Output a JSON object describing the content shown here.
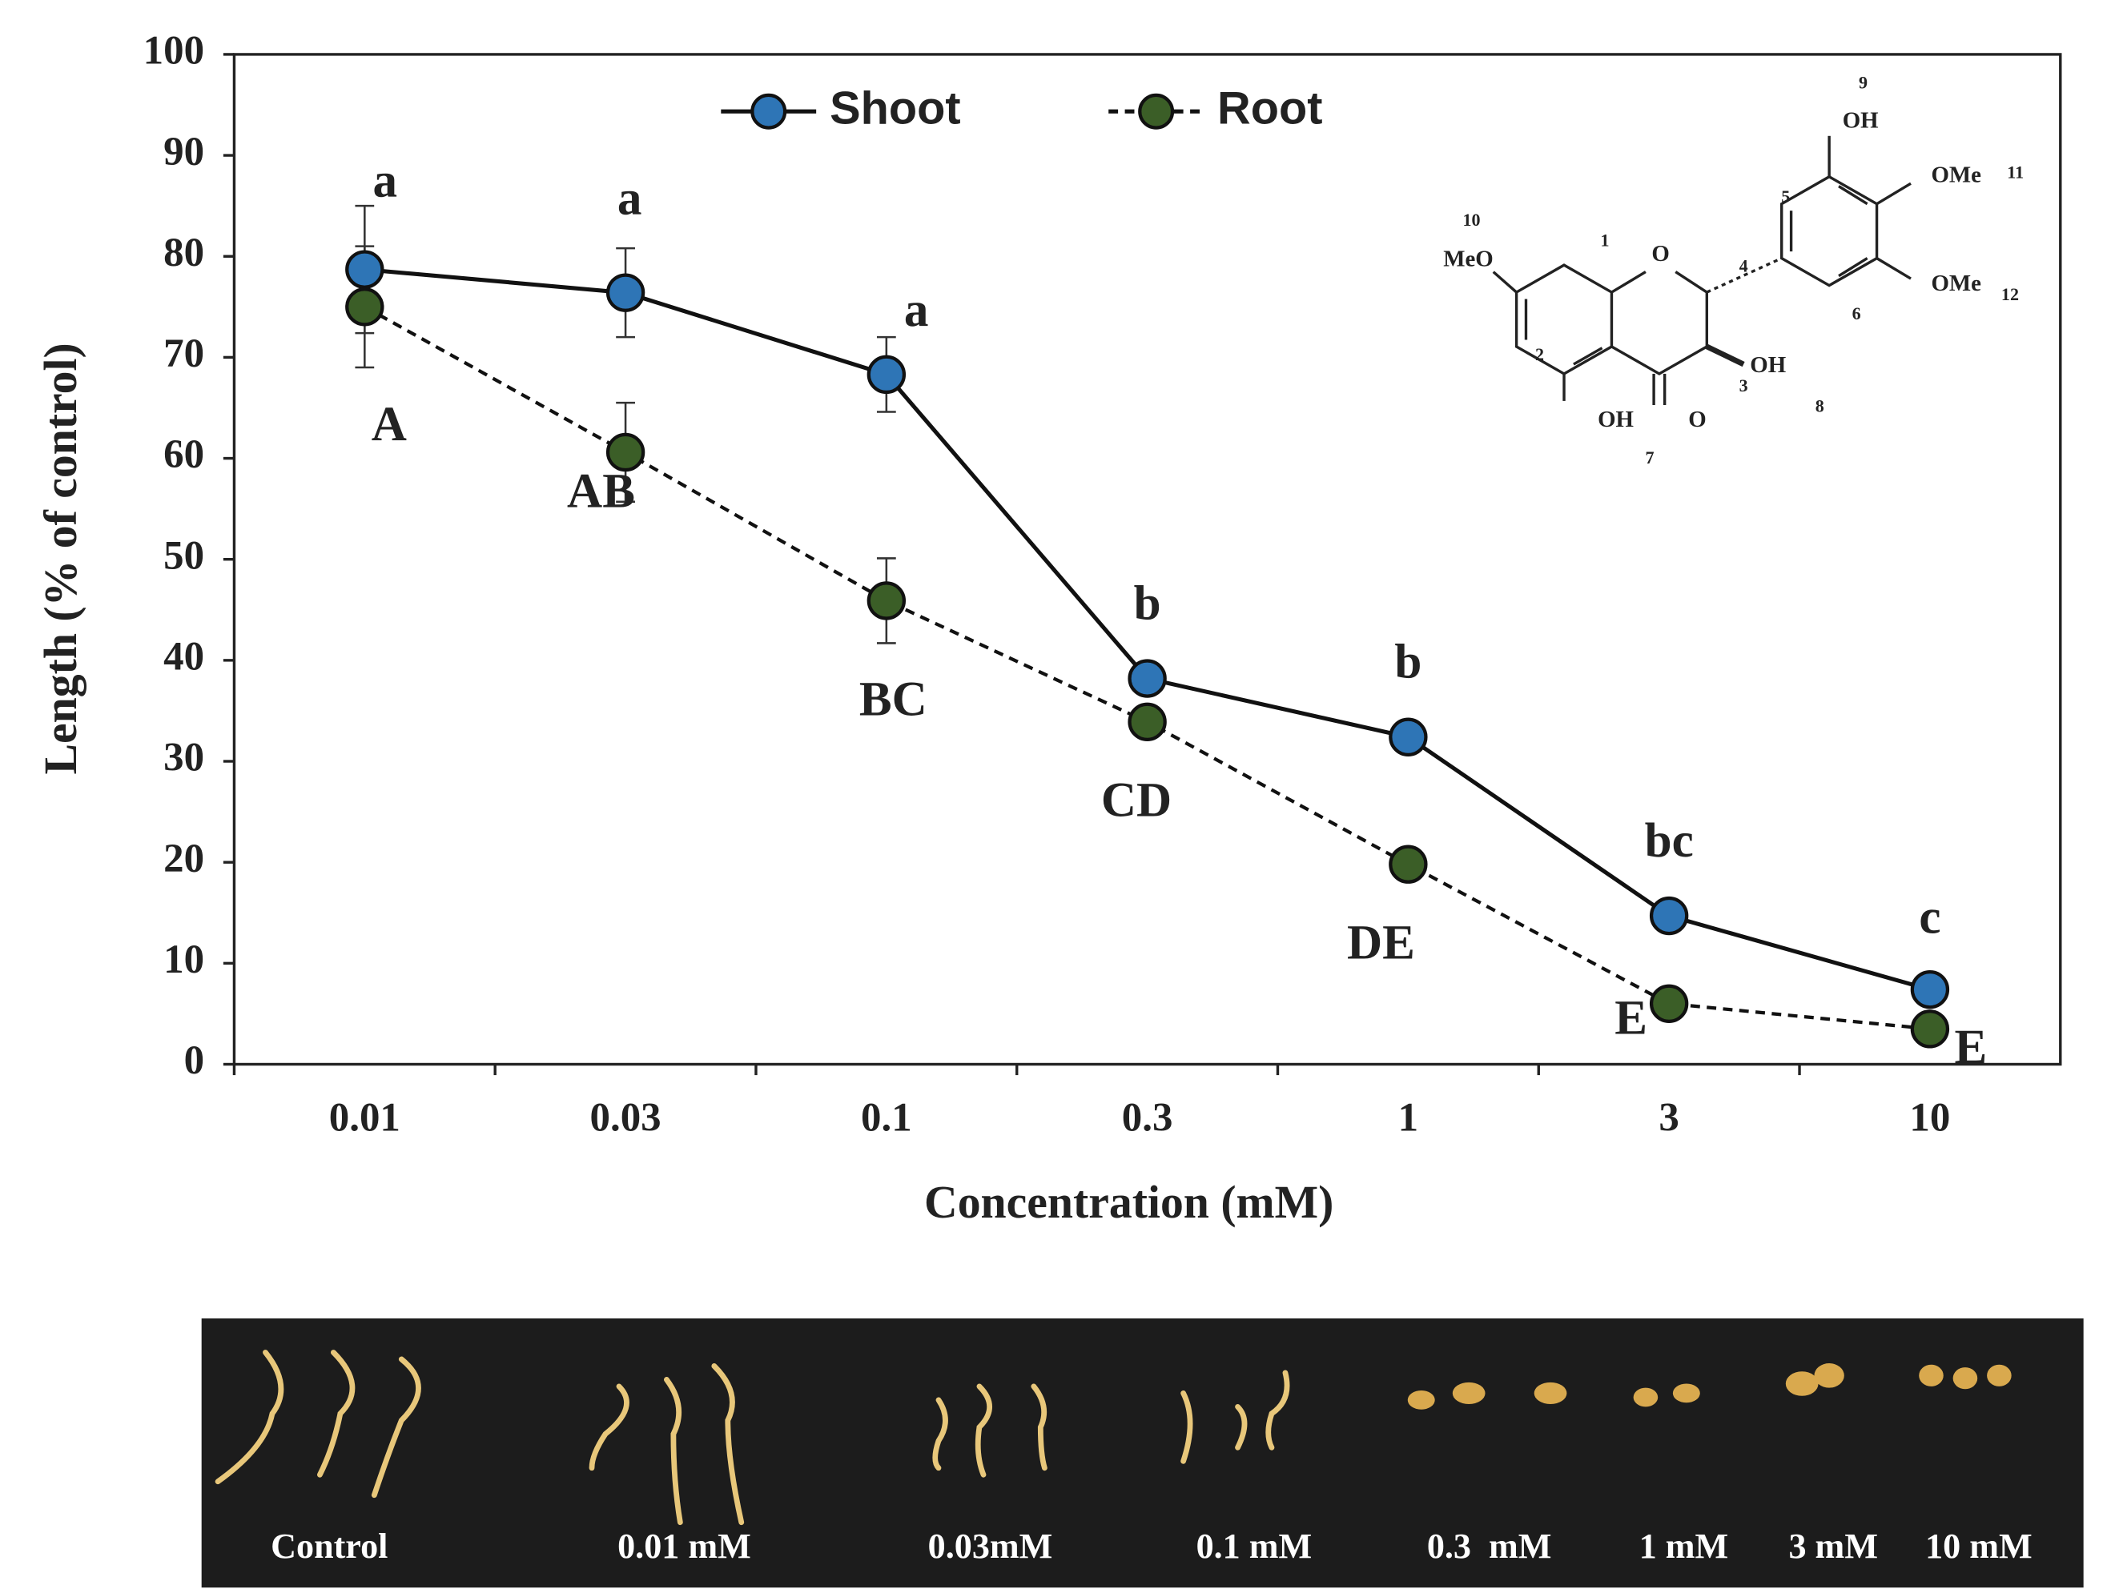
{
  "chart_data": {
    "type": "line",
    "ylabel": "Length (% of control)",
    "xlabel": "Concentration (mM)",
    "categories": [
      "0.01",
      "0.03",
      "0.1",
      "0.3",
      "1",
      "3",
      "10"
    ],
    "ylim": [
      0,
      100
    ],
    "yticks": [
      0,
      10,
      20,
      30,
      40,
      50,
      60,
      70,
      80,
      90,
      100
    ],
    "legend": "top",
    "series": [
      {
        "name": "Shoot",
        "color": "#2e75b6",
        "dashed": false,
        "values": [
          78.7,
          76.4,
          68.3,
          38.2,
          32.4,
          14.7,
          7.4
        ],
        "errors": [
          6.3,
          4.4,
          3.7,
          null,
          null,
          null,
          null
        ],
        "labels": [
          "a",
          "a",
          "a",
          "b",
          "b",
          "bc",
          "c"
        ]
      },
      {
        "name": "Root",
        "color": "#3b5e27",
        "dashed": true,
        "values": [
          75,
          60.6,
          45.9,
          33.9,
          19.8,
          6,
          3.5
        ],
        "errors": [
          6,
          4.9,
          4.2,
          null,
          null,
          null,
          null
        ],
        "labels": [
          "A",
          "AB",
          "BC",
          "CD",
          "DE",
          "E",
          "E"
        ]
      }
    ]
  },
  "structure_labels": [
    "MeO",
    "OH",
    "OMe",
    "OMe",
    "OH",
    "OH",
    "O",
    "O",
    "1",
    "2",
    "3",
    "4",
    "5",
    "6",
    "7",
    "8",
    "9",
    "10",
    "11",
    "12"
  ],
  "photo_labels": [
    "Control",
    "0.01 mM",
    "0.03mM",
    "0.1 mM",
    "0.3  mM",
    "1 mM",
    "3 mM",
    "10 mM"
  ]
}
